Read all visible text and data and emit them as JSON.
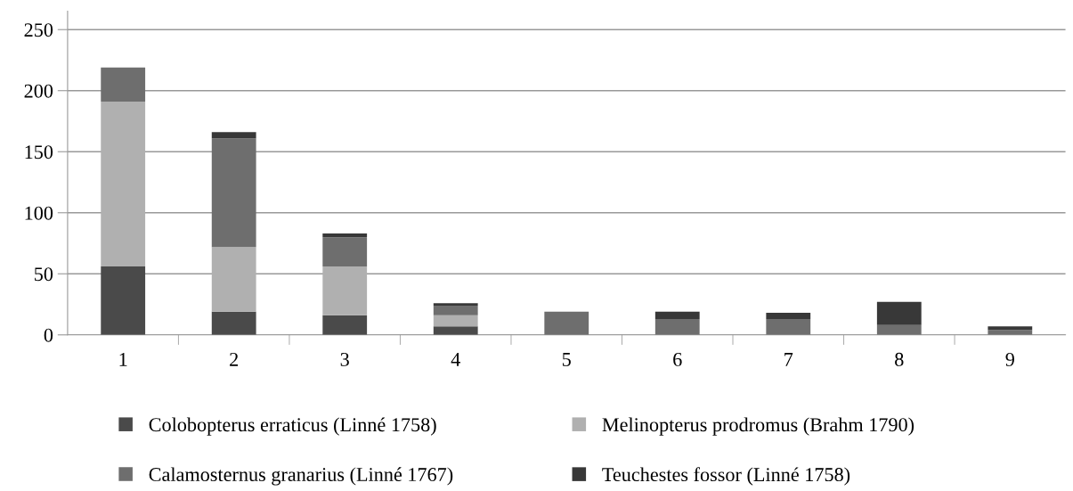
{
  "chart_data": {
    "type": "bar",
    "stacked": true,
    "categories": [
      "1",
      "2",
      "3",
      "4",
      "5",
      "6",
      "7",
      "8",
      "9"
    ],
    "series": [
      {
        "name": "Colobopterus erraticus (Linné 1758)",
        "color": "#4a4a4a",
        "values": [
          56,
          19,
          16,
          7,
          0,
          0,
          0,
          0,
          0
        ]
      },
      {
        "name": "Melinopterus prodromus (Brahm 1790)",
        "color": "#b0b0b0",
        "values": [
          135,
          53,
          40,
          9,
          0,
          0,
          0,
          0,
          0
        ]
      },
      {
        "name": "Calamosternus granarius (Linné 1767)",
        "color": "#6e6e6e",
        "values": [
          28,
          89,
          24,
          8,
          19,
          13,
          13,
          8,
          4
        ]
      },
      {
        "name": "Teuchestes fossor (Linné 1758)",
        "color": "#383838",
        "values": [
          0,
          5,
          3,
          2,
          0,
          6,
          5,
          19,
          3
        ]
      }
    ],
    "ylim": [
      0,
      265
    ],
    "yticks": [
      0,
      50,
      100,
      150,
      200,
      250
    ],
    "grid": "y",
    "legend": "bottom"
  }
}
